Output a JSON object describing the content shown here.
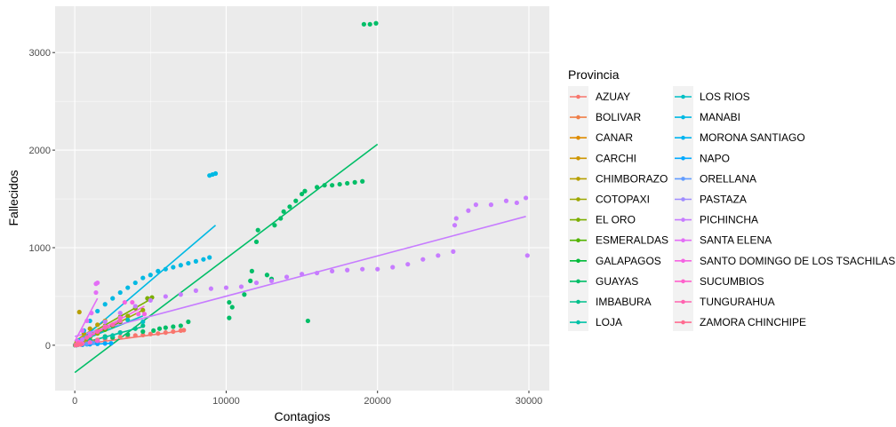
{
  "chart_data": {
    "type": "scatter",
    "xlabel": "Contagios",
    "ylabel": "Fallecidos",
    "xlim": [
      -1300,
      31350
    ],
    "ylim": [
      -465,
      3475
    ],
    "x_ticks": [
      0,
      10000,
      20000,
      30000
    ],
    "y_ticks": [
      0,
      1000,
      2000,
      3000
    ],
    "x_tick_labels": [
      "0",
      "10000",
      "20000",
      "30000"
    ],
    "y_tick_labels": [
      "0",
      "1000",
      "2000",
      "3000"
    ],
    "grid": true,
    "legend": {
      "title": "Provincia",
      "placement": "right"
    },
    "background": "#EBEBEB",
    "series": [
      {
        "name": "AZUAY",
        "color": "#F8766D",
        "points": [
          [
            200,
            10
          ],
          [
            600,
            25
          ],
          [
            1000,
            40
          ],
          [
            1500,
            55
          ],
          [
            2000,
            65
          ],
          [
            2500,
            75
          ],
          [
            3000,
            85
          ],
          [
            3500,
            90
          ],
          [
            4000,
            100
          ],
          [
            4500,
            105
          ],
          [
            5000,
            115
          ],
          [
            5500,
            120
          ],
          [
            6000,
            130
          ],
          [
            6500,
            140
          ],
          [
            7000,
            150
          ],
          [
            7200,
            155
          ]
        ],
        "fit": [
          [
            0,
            0
          ],
          [
            7200,
            150
          ]
        ]
      },
      {
        "name": "BOLIVAR",
        "color": "#EF7F49",
        "points": [
          [
            50,
            2
          ],
          [
            150,
            5
          ],
          [
            300,
            10
          ],
          [
            500,
            15
          ]
        ],
        "fit": [
          [
            0,
            0
          ],
          [
            500,
            15
          ]
        ]
      },
      {
        "name": "CANAR",
        "color": "#DE8C00",
        "points": [
          [
            100,
            5
          ],
          [
            400,
            15
          ],
          [
            800,
            25
          ],
          [
            1200,
            35
          ]
        ],
        "fit": [
          [
            0,
            2
          ],
          [
            1200,
            35
          ]
        ]
      },
      {
        "name": "CARCHI",
        "color": "#CD9600",
        "points": [
          [
            100,
            5
          ],
          [
            400,
            15
          ],
          [
            800,
            30
          ],
          [
            1100,
            40
          ]
        ],
        "fit": [
          [
            0,
            2
          ],
          [
            1100,
            40
          ]
        ]
      },
      {
        "name": "CHIMBORAZO",
        "color": "#B79F00",
        "points": [
          [
            100,
            20
          ],
          [
            300,
            340
          ],
          [
            600,
            120
          ],
          [
            1000,
            170
          ],
          [
            1500,
            210
          ],
          [
            2000,
            250
          ]
        ],
        "fit": [
          [
            0,
            40
          ],
          [
            2000,
            250
          ]
        ]
      },
      {
        "name": "COTOPAXI",
        "color": "#9DA700",
        "points": [
          [
            200,
            10
          ],
          [
            800,
            60
          ],
          [
            1500,
            120
          ],
          [
            2500,
            200
          ],
          [
            3500,
            300
          ],
          [
            4500,
            360
          ]
        ],
        "fit": [
          [
            0,
            0
          ],
          [
            4500,
            360
          ]
        ]
      },
      {
        "name": "EL ORO",
        "color": "#7CAE00",
        "points": [
          [
            500,
            50
          ],
          [
            1000,
            110
          ],
          [
            2000,
            200
          ],
          [
            3000,
            290
          ],
          [
            4000,
            380
          ],
          [
            4800,
            480
          ],
          [
            5100,
            490
          ]
        ],
        "fit": [
          [
            0,
            30
          ],
          [
            5100,
            480
          ]
        ]
      },
      {
        "name": "ESMERALDAS",
        "color": "#53B400",
        "points": [
          [
            300,
            20
          ],
          [
            1000,
            80
          ],
          [
            2000,
            160
          ],
          [
            2500,
            200
          ],
          [
            3000,
            240
          ]
        ],
        "fit": [
          [
            0,
            0
          ],
          [
            3000,
            240
          ]
        ]
      },
      {
        "name": "GALAPAGOS",
        "color": "#00BA38",
        "points": [
          [
            20,
            0
          ],
          [
            60,
            1
          ],
          [
            100,
            1
          ]
        ],
        "fit": [
          [
            0,
            0
          ],
          [
            100,
            1
          ]
        ]
      },
      {
        "name": "GUAYAS",
        "color": "#00BE67",
        "points": [
          [
            500,
            5
          ],
          [
            1500,
            20
          ],
          [
            2500,
            80
          ],
          [
            3500,
            110
          ],
          [
            4500,
            140
          ],
          [
            5200,
            150
          ],
          [
            5600,
            170
          ],
          [
            6000,
            180
          ],
          [
            6500,
            190
          ],
          [
            7000,
            200
          ],
          [
            7500,
            240
          ],
          [
            10200,
            280
          ],
          [
            10200,
            440
          ],
          [
            10400,
            390
          ],
          [
            11200,
            520
          ],
          [
            11600,
            660
          ],
          [
            11700,
            760
          ],
          [
            12000,
            1060
          ],
          [
            12100,
            1180
          ],
          [
            12700,
            720
          ],
          [
            13000,
            680
          ],
          [
            13200,
            1230
          ],
          [
            13600,
            1300
          ],
          [
            13800,
            1370
          ],
          [
            14200,
            1420
          ],
          [
            14600,
            1480
          ],
          [
            15000,
            1550
          ],
          [
            15200,
            1580
          ],
          [
            15400,
            250
          ],
          [
            16000,
            1620
          ],
          [
            16500,
            1640
          ],
          [
            17000,
            1640
          ],
          [
            17500,
            1650
          ],
          [
            18000,
            1660
          ],
          [
            18500,
            1670
          ],
          [
            19000,
            1680
          ],
          [
            19100,
            3290
          ],
          [
            19500,
            3290
          ],
          [
            19900,
            3300
          ]
        ],
        "fit": [
          [
            0,
            -280
          ],
          [
            20000,
            2060
          ]
        ]
      },
      {
        "name": "IMBABURA",
        "color": "#00C08B",
        "points": [
          [
            200,
            10
          ],
          [
            1000,
            50
          ],
          [
            2000,
            90
          ],
          [
            3000,
            130
          ],
          [
            4000,
            170
          ],
          [
            4500,
            200
          ]
        ],
        "fit": [
          [
            0,
            0
          ],
          [
            4500,
            190
          ]
        ]
      },
      {
        "name": "LOJA",
        "color": "#00C1A7",
        "points": [
          [
            200,
            10
          ],
          [
            1000,
            40
          ],
          [
            2000,
            80
          ],
          [
            2500,
            100
          ],
          [
            3000,
            130
          ]
        ],
        "fit": [
          [
            0,
            0
          ],
          [
            3000,
            125
          ]
        ]
      },
      {
        "name": "LOS RIOS",
        "color": "#00BFC4",
        "points": [
          [
            300,
            20
          ],
          [
            1000,
            100
          ],
          [
            2000,
            180
          ],
          [
            3000,
            250
          ],
          [
            3500,
            260
          ],
          [
            4500,
            240
          ]
        ],
        "fit": [
          [
            0,
            20
          ],
          [
            4500,
            300
          ]
        ]
      },
      {
        "name": "MANABI",
        "color": "#00B9E3",
        "points": [
          [
            300,
            50
          ],
          [
            600,
            150
          ],
          [
            1000,
            250
          ],
          [
            1500,
            350
          ],
          [
            2000,
            420
          ],
          [
            2500,
            480
          ],
          [
            3000,
            540
          ],
          [
            3500,
            590
          ],
          [
            4000,
            640
          ],
          [
            4500,
            690
          ],
          [
            5000,
            720
          ],
          [
            5500,
            760
          ],
          [
            6000,
            780
          ],
          [
            6500,
            800
          ],
          [
            7000,
            820
          ],
          [
            7500,
            840
          ],
          [
            8000,
            860
          ],
          [
            8500,
            880
          ],
          [
            8900,
            900
          ],
          [
            8900,
            1740
          ],
          [
            9100,
            1750
          ],
          [
            9300,
            1760
          ]
        ],
        "fit": [
          [
            0,
            0
          ],
          [
            9300,
            1230
          ]
        ]
      },
      {
        "name": "MORONA SANTIAGO",
        "color": "#00B4F0",
        "points": [
          [
            50,
            1
          ],
          [
            200,
            4
          ],
          [
            500,
            8
          ],
          [
            800,
            10
          ]
        ],
        "fit": [
          [
            0,
            0
          ],
          [
            800,
            10
          ]
        ]
      },
      {
        "name": "NAPO",
        "color": "#00A9FF",
        "points": [
          [
            100,
            2
          ],
          [
            500,
            5
          ],
          [
            1000,
            10
          ],
          [
            1500,
            15
          ],
          [
            2000,
            18
          ],
          [
            2400,
            20
          ]
        ],
        "fit": [
          [
            0,
            0
          ],
          [
            2400,
            20
          ]
        ]
      },
      {
        "name": "ORELLANA",
        "color": "#619CFF",
        "points": [
          [
            100,
            3
          ],
          [
            400,
            8
          ],
          [
            800,
            15
          ],
          [
            1200,
            25
          ]
        ],
        "fit": [
          [
            0,
            0
          ],
          [
            1200,
            25
          ]
        ]
      },
      {
        "name": "PASTAZA",
        "color": "#9F8CFF",
        "points": [
          [
            50,
            1
          ],
          [
            200,
            5
          ],
          [
            400,
            10
          ]
        ],
        "fit": [
          [
            0,
            0
          ],
          [
            400,
            10
          ]
        ]
      },
      {
        "name": "PICHINCHA",
        "color": "#C77CFF",
        "points": [
          [
            500,
            60
          ],
          [
            1000,
            120
          ],
          [
            2000,
            240
          ],
          [
            3000,
            330
          ],
          [
            4000,
            400
          ],
          [
            5000,
            460
          ],
          [
            6000,
            500
          ],
          [
            7000,
            520
          ],
          [
            8000,
            560
          ],
          [
            9000,
            580
          ],
          [
            10000,
            590
          ],
          [
            11000,
            600
          ],
          [
            12000,
            640
          ],
          [
            13000,
            660
          ],
          [
            14000,
            700
          ],
          [
            15000,
            730
          ],
          [
            16000,
            740
          ],
          [
            17000,
            760
          ],
          [
            18000,
            770
          ],
          [
            19000,
            780
          ],
          [
            20000,
            780
          ],
          [
            21000,
            800
          ],
          [
            22000,
            830
          ],
          [
            23000,
            880
          ],
          [
            24000,
            920
          ],
          [
            25000,
            960
          ],
          [
            25100,
            1230
          ],
          [
            25200,
            1300
          ],
          [
            26000,
            1380
          ],
          [
            26500,
            1440
          ],
          [
            27500,
            1440
          ],
          [
            28500,
            1480
          ],
          [
            29200,
            1460
          ],
          [
            29800,
            1510
          ],
          [
            29900,
            920
          ]
        ],
        "fit": [
          [
            0,
            90
          ],
          [
            29800,
            1320
          ]
        ]
      },
      {
        "name": "SANTA ELENA",
        "color": "#E36EF6",
        "points": [
          [
            200,
            40
          ],
          [
            500,
            150
          ],
          [
            800,
            250
          ],
          [
            1100,
            330
          ],
          [
            1400,
            540
          ],
          [
            1400,
            630
          ],
          [
            1500,
            640
          ]
        ],
        "fit": [
          [
            0,
            40
          ],
          [
            1500,
            480
          ]
        ]
      },
      {
        "name": "SANTO DOMINGO DE LOS TSACHILAS",
        "color": "#F564E3",
        "points": [
          [
            300,
            30
          ],
          [
            1000,
            100
          ],
          [
            2000,
            190
          ],
          [
            3000,
            280
          ],
          [
            3300,
            440
          ],
          [
            3800,
            440
          ],
          [
            4200,
            320
          ],
          [
            4600,
            320
          ]
        ],
        "fit": [
          [
            0,
            20
          ],
          [
            4600,
            400
          ]
        ]
      },
      {
        "name": "SUCUMBIOS",
        "color": "#FF61CC",
        "points": [
          [
            100,
            3
          ],
          [
            500,
            15
          ],
          [
            1000,
            30
          ],
          [
            1500,
            45
          ]
        ],
        "fit": [
          [
            0,
            0
          ],
          [
            1500,
            45
          ]
        ]
      },
      {
        "name": "TUNGURAHUA",
        "color": "#FF64B0",
        "points": [
          [
            200,
            20
          ],
          [
            800,
            80
          ],
          [
            1500,
            140
          ],
          [
            2000,
            180
          ],
          [
            2500,
            210
          ],
          [
            3000,
            250
          ]
        ],
        "fit": [
          [
            0,
            10
          ],
          [
            3000,
            250
          ]
        ]
      },
      {
        "name": "ZAMORA CHINCHIPE",
        "color": "#FF6C91",
        "points": [
          [
            50,
            1
          ],
          [
            200,
            4
          ],
          [
            400,
            8
          ]
        ],
        "fit": [
          [
            0,
            0
          ],
          [
            400,
            8
          ]
        ]
      }
    ]
  }
}
